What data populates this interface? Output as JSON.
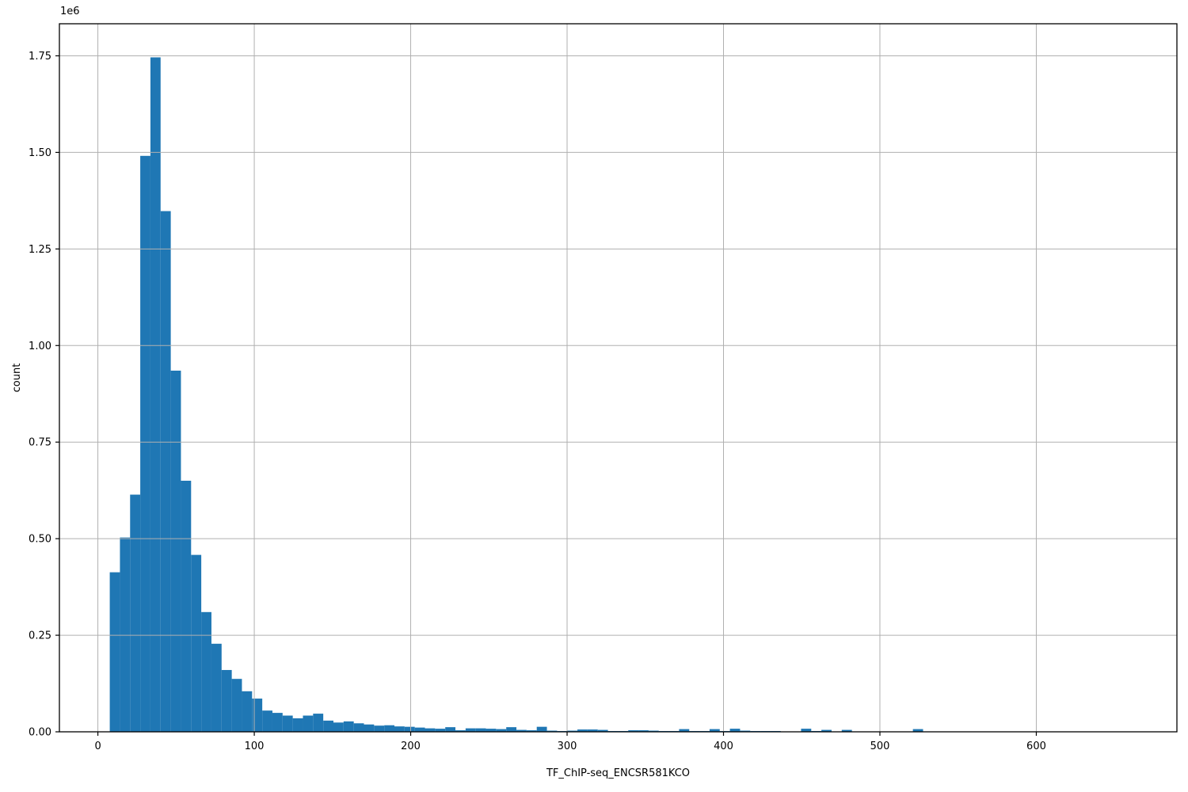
{
  "chart_data": {
    "type": "bar",
    "subtype": "histogram",
    "title": "",
    "xlabel": "TF_ChIP-seq_ENCSR581KCO",
    "ylabel": "count",
    "y_offset_label": "1e6",
    "grid": true,
    "legend": null,
    "bar_color": "#1f77b4",
    "grid_color": "#b0b0b0",
    "spine_color": "#000000",
    "text_color": "#000000",
    "background_color": "#ffffff",
    "xlim": [
      -24.6,
      689.9
    ],
    "ylim": [
      0,
      1833000
    ],
    "xticks": [
      0,
      100,
      200,
      300,
      400,
      500,
      600
    ],
    "xtick_labels": [
      "0",
      "100",
      "200",
      "300",
      "400",
      "500",
      "600"
    ],
    "ytick_values": [
      0,
      250000,
      500000,
      750000,
      1000000,
      1250000,
      1500000,
      1750000
    ],
    "ytick_labels": [
      "0.00",
      "0.25",
      "0.50",
      "0.75",
      "1.00",
      "1.25",
      "1.50",
      "1.75"
    ],
    "bin_start": 7.6,
    "bin_width": 6.5,
    "counts": [
      413000,
      503000,
      614000,
      1491000,
      1746000,
      1348000,
      935000,
      650000,
      458000,
      310000,
      228000,
      160000,
      137000,
      105000,
      86000,
      55000,
      49000,
      42000,
      35000,
      42000,
      47000,
      29000,
      24000,
      27000,
      22000,
      19000,
      16000,
      17000,
      14000,
      13000,
      11000,
      9000,
      8000,
      12000,
      4000,
      9000,
      9000,
      8000,
      7000,
      12000,
      5000,
      4000,
      13000,
      3000,
      2000,
      3000,
      6000,
      6000,
      5000,
      2000,
      2000,
      4000,
      4000,
      3000,
      2000,
      2000,
      7000,
      2000,
      2000,
      7000,
      2000,
      8000,
      3000,
      2000,
      2000,
      2000,
      1000,
      1000,
      8000,
      2000,
      5000,
      1000,
      5000,
      1000,
      1000,
      1000,
      1000,
      0,
      1000,
      7000,
      0,
      0,
      0,
      0,
      0,
      0,
      0,
      0,
      0,
      0,
      0,
      0,
      0,
      0,
      0,
      0,
      0,
      0,
      0,
      0
    ]
  }
}
